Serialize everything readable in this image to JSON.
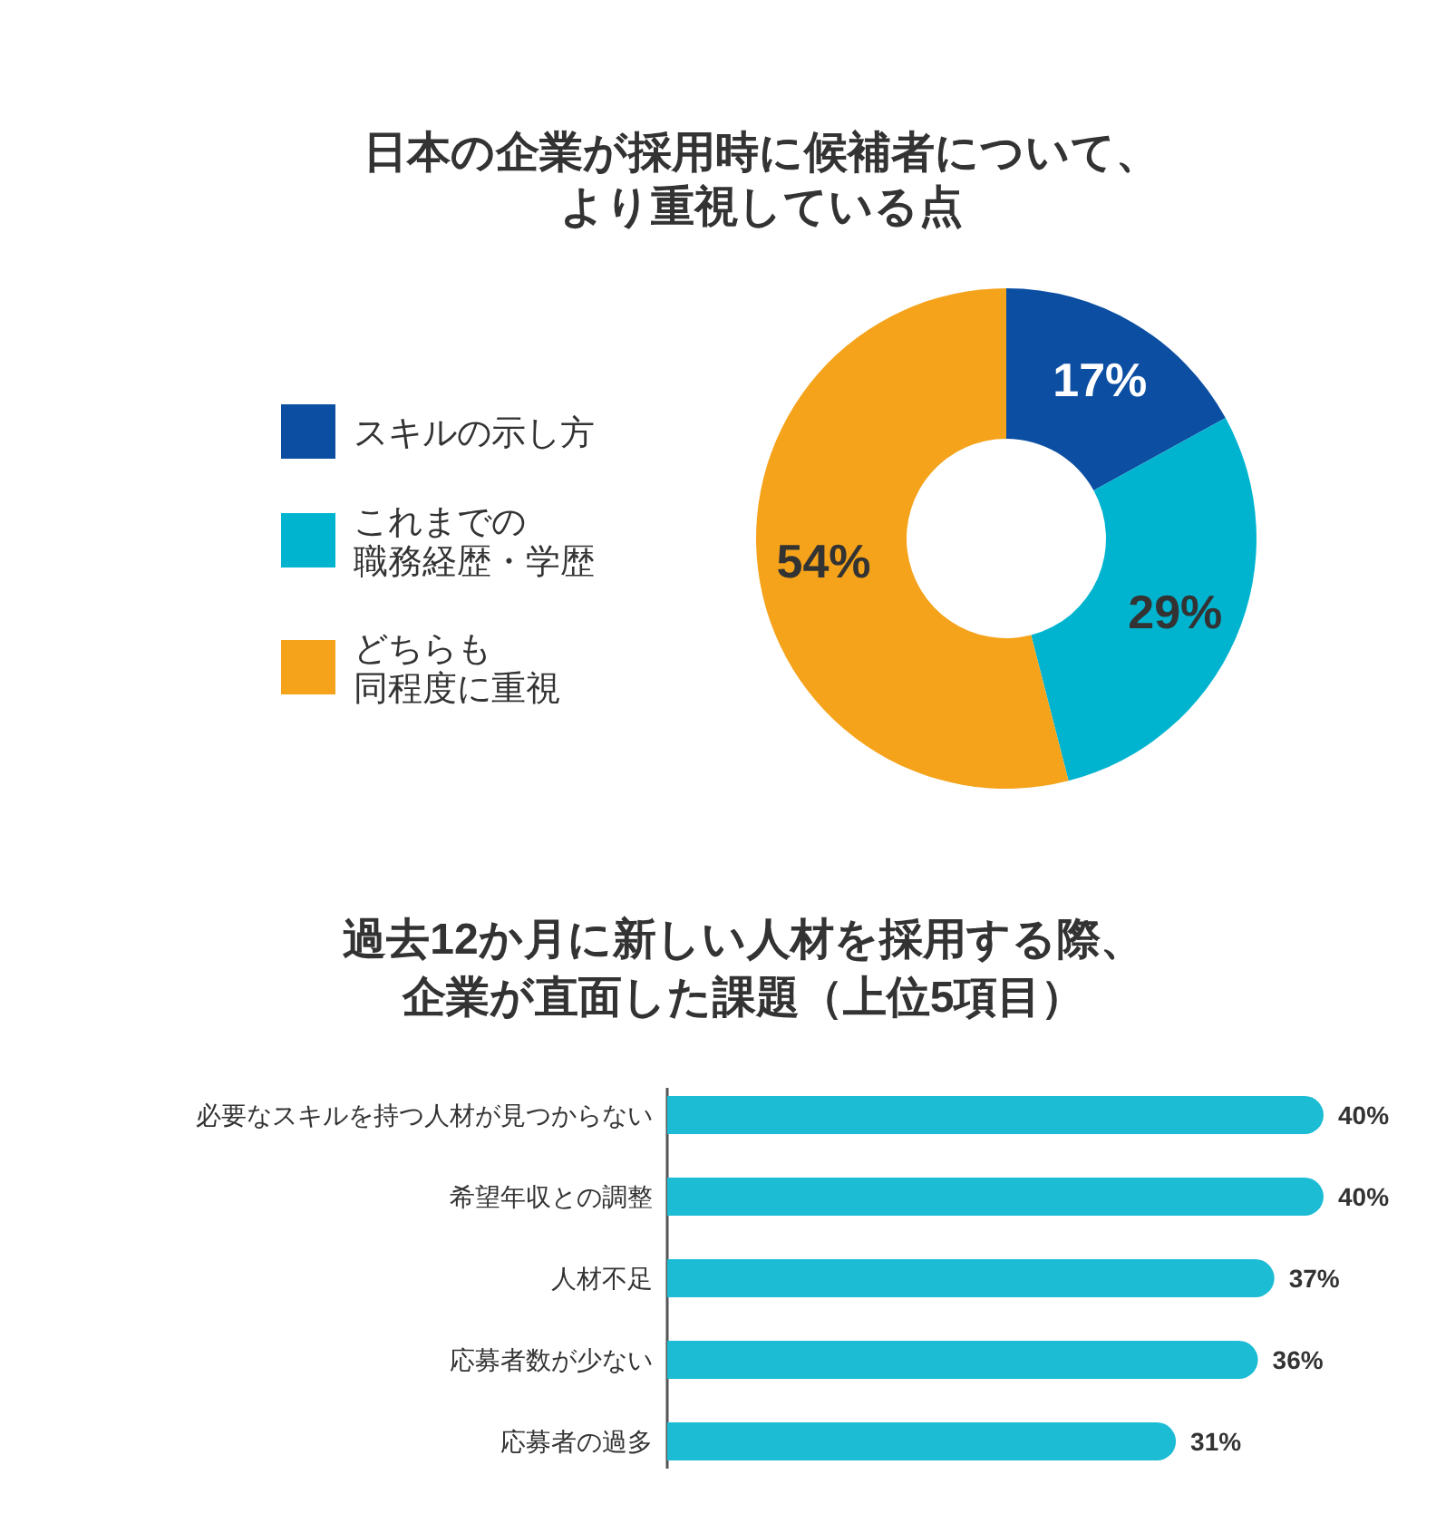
{
  "chart_data": [
    {
      "type": "donut",
      "title": "日本の企業が採用時に候補者について、より重視している点",
      "categories": [
        "スキルの示し方",
        "これまでの職務経歴・学歴",
        "どちらも同程度に重視"
      ],
      "values": [
        17,
        29,
        54
      ],
      "colors": [
        "#0b4ea2",
        "#00b4d0",
        "#f5a31b"
      ],
      "value_labels": [
        "17%",
        "29%",
        "54%"
      ],
      "legend": "left"
    },
    {
      "type": "bar",
      "orientation": "horizontal",
      "title": "過去12か月に新しい人材を採用する際、企業が直面した課題（上位5項目）",
      "categories": [
        "必要なスキルを持つ人材が見つからない",
        "希望年収との調整",
        "人材不足",
        "応募者数が少ない",
        "応募者の過多"
      ],
      "values": [
        40,
        40,
        37,
        36,
        31
      ],
      "color": "#1bbcd4",
      "value_labels": [
        "40%",
        "40%",
        "37%",
        "36%",
        "31%"
      ]
    }
  ]
}
